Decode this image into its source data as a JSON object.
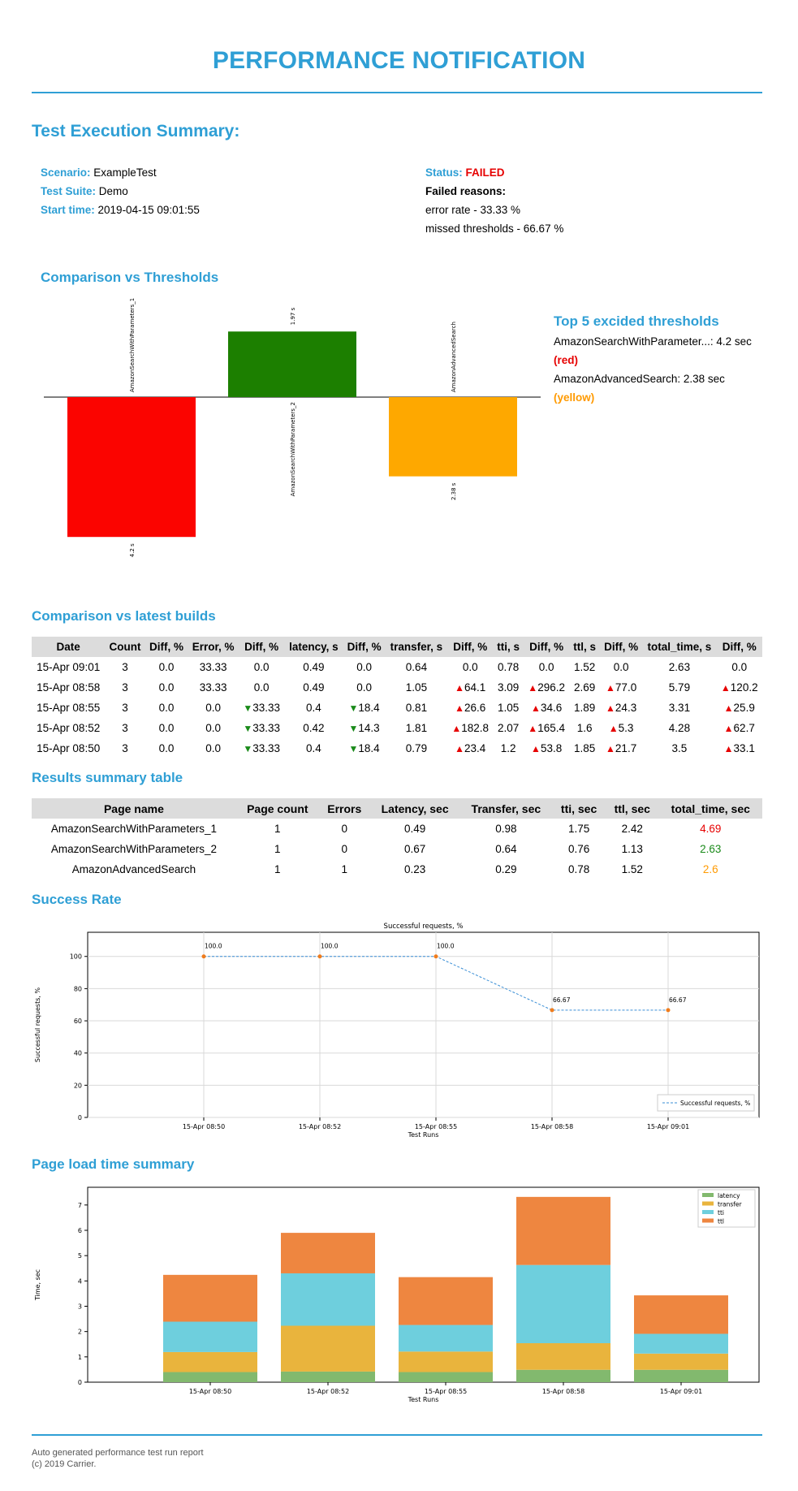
{
  "header": {
    "title": "PERFORMANCE NOTIFICATION"
  },
  "summary": {
    "heading": "Test Execution Summary:",
    "scenario_label": "Scenario:",
    "scenario": "ExampleTest",
    "suite_label": "Test Suite:",
    "suite": "Demo",
    "start_label": "Start time:",
    "start": "2019-04-15 09:01:55",
    "status_label": "Status:",
    "status": "FAILED",
    "failed_label": "Failed reasons:",
    "reasons": [
      "error rate - 33.33 %",
      "missed thresholds - 66.67 %"
    ],
    "status_color": "#e60000"
  },
  "thresholds": {
    "heading": "Comparison vs Thresholds",
    "top_heading": "Top 5 excided thresholds",
    "top": [
      {
        "text": "AmazonSearchWithParameter...: 4.2 sec",
        "tag": "(red)"
      },
      {
        "text": "AmazonAdvancedSearch: 2.38 sec",
        "tag": "(yellow)"
      }
    ]
  },
  "chart_data": [
    {
      "type": "bar",
      "categories": [
        "AmazonSearchWithParameters_1",
        "AmazonSearchWithParameters_2",
        "AmazonAdvancedSearch"
      ],
      "values": [
        -4.2,
        1.97,
        -2.38
      ],
      "value_labels": [
        "4.2 s",
        "1.97 s",
        "2.38 s"
      ],
      "colors": [
        "#fb0400",
        "#1c7f00",
        "#fea800"
      ],
      "grid": false
    },
    {
      "type": "line",
      "title": "Successful requests, %",
      "xlabel": "Test Runs",
      "ylabel": "Successful requests, %",
      "x": [
        "15-Apr 08:50",
        "15-Apr 08:52",
        "15-Apr 08:55",
        "15-Apr 08:58",
        "15-Apr 09:01"
      ],
      "series": [
        {
          "name": "Successful requests, %",
          "values": [
            100.0,
            100.0,
            100.0,
            66.67,
            66.67
          ]
        }
      ],
      "point_labels": [
        "100.0",
        "100.0",
        "100.0",
        "66.67",
        "66.67"
      ],
      "yticks": [
        0,
        20,
        40,
        60,
        80,
        100
      ],
      "ylim": [
        0,
        115
      ],
      "grid": true,
      "legend": "lower-right",
      "line_color": "#3a8fd6",
      "point_color": "#f07c1c"
    },
    {
      "type": "bar",
      "stacked": true,
      "xlabel": "Test Runs",
      "ylabel": "Time, sec",
      "categories": [
        "15-Apr 08:50",
        "15-Apr 08:52",
        "15-Apr 08:55",
        "15-Apr 08:58",
        "15-Apr 09:01"
      ],
      "series": [
        {
          "name": "latency",
          "values": [
            0.4,
            0.42,
            0.4,
            0.49,
            0.49
          ],
          "color": "#82b96e"
        },
        {
          "name": "transfer",
          "values": [
            0.79,
            1.81,
            0.81,
            1.05,
            0.64
          ],
          "color": "#e9b43d"
        },
        {
          "name": "tti",
          "values": [
            1.2,
            2.07,
            1.05,
            3.09,
            0.78
          ],
          "color": "#6ecfdd"
        },
        {
          "name": "ttl",
          "values": [
            1.85,
            1.6,
            1.89,
            2.69,
            1.52
          ],
          "color": "#ee8640"
        }
      ],
      "yticks": [
        0,
        1,
        2,
        3,
        4,
        5,
        6,
        7
      ],
      "ylim": [
        0,
        7.7
      ],
      "legend": "top-right"
    }
  ],
  "builds": {
    "heading": "Comparison vs latest builds",
    "columns": [
      "Date",
      "Count",
      "Diff, %",
      "Error, %",
      "Diff, %",
      "latency, s",
      "Diff, %",
      "transfer, s",
      "Diff, %",
      "tti, s",
      "Diff, %",
      "ttl, s",
      "Diff, %",
      "total_time, s",
      "Diff, %"
    ],
    "rows": [
      [
        "15-Apr 09:01",
        "3",
        "0.0",
        "33.33",
        "0.0",
        "0.49",
        "0.0",
        "0.64",
        "0.0",
        "0.78",
        "0.0",
        "1.52",
        "0.0",
        "2.63",
        "0.0"
      ],
      [
        "15-Apr 08:58",
        "3",
        "0.0",
        "33.33",
        "0.0",
        "0.49",
        "0.0",
        "1.05",
        "▲64.1",
        "3.09",
        "▲296.2",
        "2.69",
        "▲77.0",
        "5.79",
        "▲120.2"
      ],
      [
        "15-Apr 08:55",
        "3",
        "0.0",
        "0.0",
        "▼33.33",
        "0.4",
        "▼18.4",
        "0.81",
        "▲26.6",
        "1.05",
        "▲34.6",
        "1.89",
        "▲24.3",
        "3.31",
        "▲25.9"
      ],
      [
        "15-Apr 08:52",
        "3",
        "0.0",
        "0.0",
        "▼33.33",
        "0.42",
        "▼14.3",
        "1.81",
        "▲182.8",
        "2.07",
        "▲165.4",
        "1.6",
        "▲5.3",
        "4.28",
        "▲62.7"
      ],
      [
        "15-Apr 08:50",
        "3",
        "0.0",
        "0.0",
        "▼33.33",
        "0.4",
        "▼18.4",
        "0.79",
        "▲23.4",
        "1.2",
        "▲53.8",
        "1.85",
        "▲21.7",
        "3.5",
        "▲33.1"
      ]
    ]
  },
  "results": {
    "heading": "Results summary table",
    "columns": [
      "Page name",
      "Page count",
      "Errors",
      "Latency, sec",
      "Transfer, sec",
      "tti, sec",
      "ttl, sec",
      "total_time, sec"
    ],
    "rows": [
      [
        "AmazonSearchWithParameters_1",
        "1",
        "0",
        "0.49",
        "0.98",
        "1.75",
        "2.42",
        "4.69"
      ],
      [
        "AmazonSearchWithParameters_2",
        "1",
        "0",
        "0.67",
        "0.64",
        "0.76",
        "1.13",
        "2.63"
      ],
      [
        "AmazonAdvancedSearch",
        "1",
        "1",
        "0.23",
        "0.29",
        "0.78",
        "1.52",
        "2.6"
      ]
    ],
    "total_colors": [
      "#e60000",
      "#1a8a1a",
      "#ff9a00"
    ]
  },
  "success": {
    "heading": "Success Rate"
  },
  "pageload": {
    "heading": "Page load time summary"
  },
  "footer": {
    "line1": "Auto generated performance test run report",
    "line2": "(c) 2019 Carrier."
  }
}
